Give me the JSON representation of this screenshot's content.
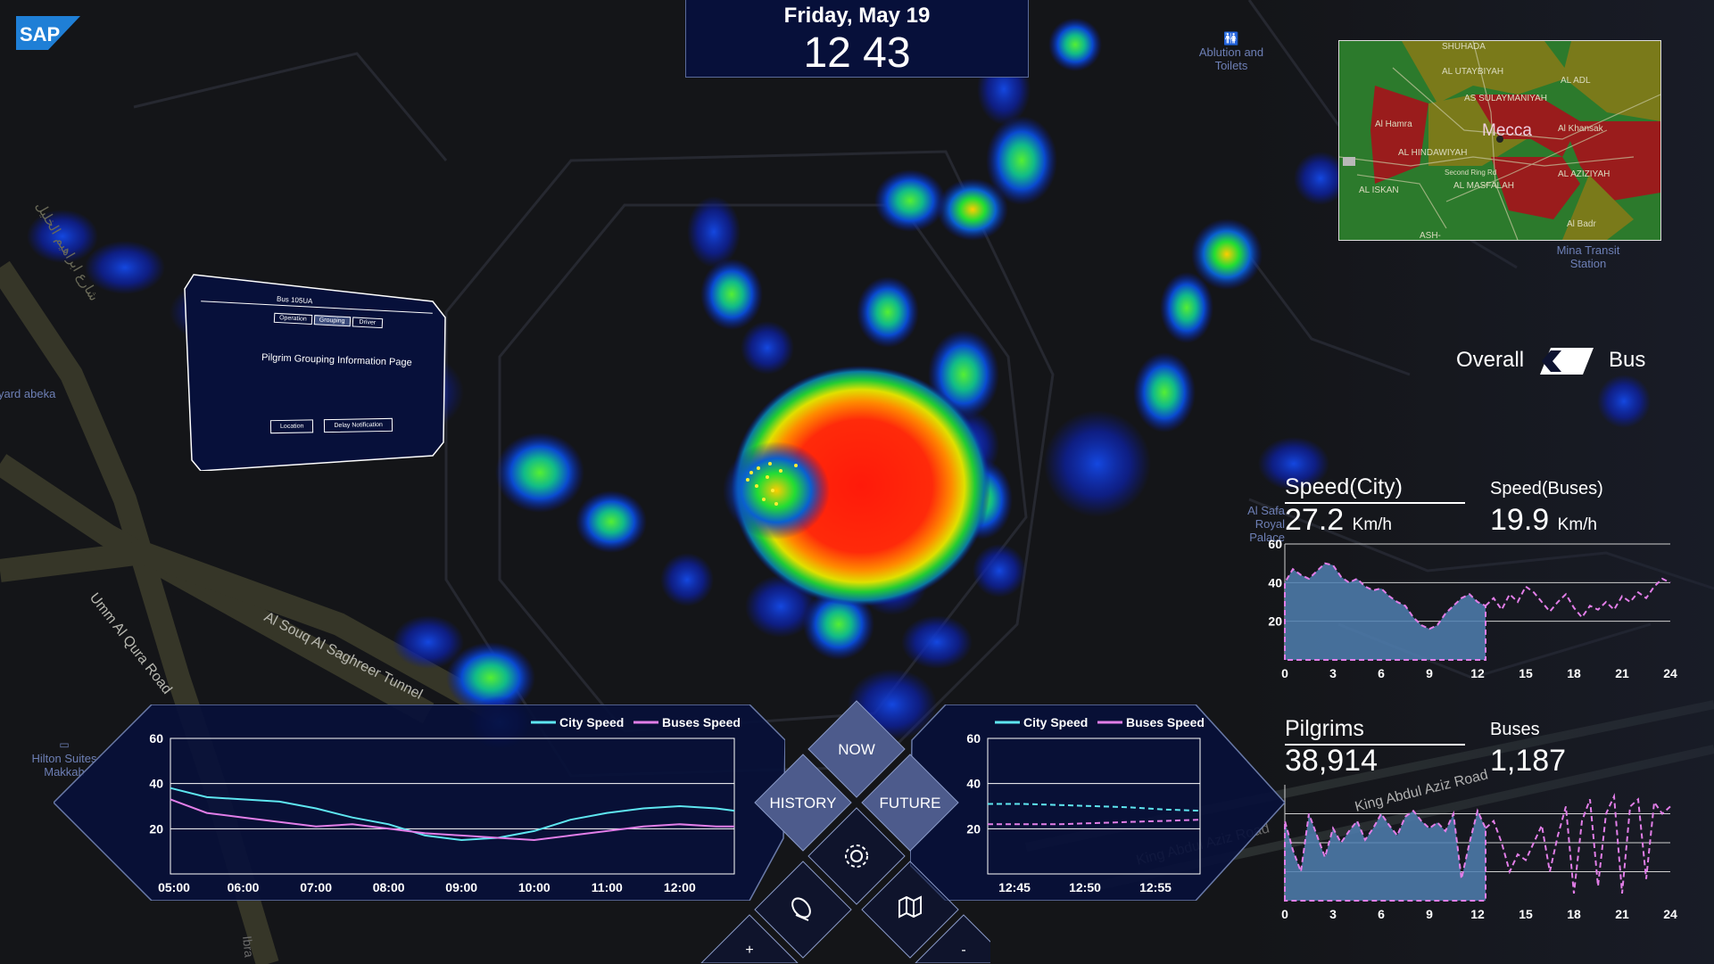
{
  "header": {
    "date": "Friday, May 19",
    "time": "12 43"
  },
  "logo": {
    "text": "SAP"
  },
  "map_labels": {
    "ablution": "Ablution and Toilets",
    "mina": "Mina Transit Station",
    "safa": "Al Safa Royal Palace",
    "hilton": "Hilton Suites Makkah",
    "umm_al_qura": "Umm Al Qura Road",
    "souq_tunnel": "Al Souq Al Saghreer Tunnel",
    "arabic_street": "شارع ابراهيم الخليل",
    "king_abdul": "King Abdul Aziz Road",
    "yard": "yard abeka",
    "ibra": "Ibra"
  },
  "minimap": {
    "city": "Mecca",
    "districts": [
      "SHUHADA",
      "AL UTAYBIYAH",
      "AS SULAYMANIYAH",
      "AL ADL",
      "Al Hamra",
      "AL HINDAWIYAH",
      "Al Khansak",
      "AL AZIZIYAH",
      "Second Ring Rd",
      "AL MASFALAH",
      "AL ISKAN",
      "Al Badr",
      "ASH-"
    ],
    "colors": {
      "congested": "#9a1c1c",
      "moderate": "#7a7a1a",
      "free": "#2c7a2c"
    }
  },
  "toggle": {
    "left": "Overall",
    "right": "Bus"
  },
  "bus_info": {
    "title": "Bus 105UA",
    "tabs": [
      "Operation",
      "Grouping",
      "Driver"
    ],
    "heading": "Pilgrim Grouping Information Page",
    "buttons": [
      "Location",
      "Delay Notification"
    ]
  },
  "stats": {
    "speed_city_label": "Speed(City)",
    "speed_city_value": "27.2",
    "speed_buses_label": "Speed(Buses)",
    "speed_buses_value": "19.9",
    "unit": "Km/h",
    "pilgrims_label": "Pilgrims",
    "pilgrims_value": "38,914",
    "buses_label": "Buses",
    "buses_value": "1,187"
  },
  "nav": {
    "now": "NOW",
    "history": "HISTORY",
    "future": "FUTURE",
    "zoom_in": "+",
    "zoom_out": "-"
  },
  "colors": {
    "city": "#5ee6f0",
    "bus": "#e27ee8",
    "panel": "#07103a",
    "area": "#4f7fb0"
  },
  "chart_data": [
    {
      "type": "line",
      "name": "history-chart",
      "legend": [
        "City Speed",
        "Buses Speed"
      ],
      "x_ticks": [
        "05:00",
        "06:00",
        "07:00",
        "08:00",
        "09:00",
        "10:00",
        "11:00",
        "12:00"
      ],
      "ylim": [
        0,
        60
      ],
      "y_ticks": [
        20,
        40,
        60
      ],
      "x": [
        5.0,
        5.5,
        6.0,
        6.5,
        7.0,
        7.5,
        8.0,
        8.5,
        9.0,
        9.5,
        10.0,
        10.5,
        11.0,
        11.5,
        12.0,
        12.5,
        12.75
      ],
      "series": [
        {
          "name": "City Speed",
          "values": [
            38,
            34,
            33,
            32,
            29,
            25,
            22,
            17,
            15,
            16,
            19,
            24,
            27,
            29,
            30,
            29,
            28
          ]
        },
        {
          "name": "Buses Speed",
          "values": [
            33,
            27,
            25,
            23,
            21,
            22,
            20,
            18,
            17,
            16,
            15,
            17,
            19,
            21,
            22,
            21,
            21
          ]
        }
      ]
    },
    {
      "type": "line",
      "name": "future-chart",
      "legend": [
        "City Speed",
        "Buses Speed"
      ],
      "x_ticks": [
        "12:45",
        "12:50",
        "12:55"
      ],
      "ylim": [
        0,
        60
      ],
      "y_ticks": [
        20,
        40,
        60
      ],
      "x": [
        43,
        46,
        49,
        52,
        55,
        58,
        61
      ],
      "series": [
        {
          "name": "City Speed",
          "values": [
            31,
            31,
            30.5,
            30,
            29.5,
            28.5,
            28
          ]
        },
        {
          "name": "Buses Speed",
          "values": [
            22,
            22,
            22,
            22.5,
            23,
            23.5,
            24
          ]
        }
      ]
    },
    {
      "type": "area",
      "name": "speed-chart",
      "x_ticks": [
        "0",
        "3",
        "6",
        "9",
        "12",
        "15",
        "18",
        "21",
        "24"
      ],
      "ylim": [
        0,
        60
      ],
      "y_ticks": [
        20,
        40,
        60
      ],
      "area_x": [
        0,
        0.5,
        1,
        1.5,
        2,
        2.5,
        3,
        3.5,
        4,
        4.5,
        5,
        5.5,
        6,
        6.5,
        7,
        7.5,
        8,
        8.5,
        9,
        9.5,
        10,
        10.5,
        11,
        11.5,
        12,
        12.5
      ],
      "area_values": [
        40,
        47,
        44,
        42,
        46,
        50,
        49,
        43,
        40,
        42,
        38,
        36,
        37,
        33,
        30,
        28,
        22,
        18,
        16,
        18,
        24,
        28,
        32,
        34,
        30,
        28
      ],
      "line_x": [
        12.5,
        13,
        13.5,
        14,
        14.5,
        15,
        15.5,
        16,
        16.5,
        17,
        17.5,
        18,
        18.5,
        19,
        19.5,
        20,
        20.5,
        21,
        21.5,
        22,
        22.5,
        23,
        23.5,
        24
      ],
      "line_values": [
        28,
        32,
        26,
        34,
        30,
        38,
        35,
        30,
        25,
        30,
        34,
        27,
        22,
        28,
        26,
        30,
        26,
        33,
        30,
        35,
        32,
        38,
        42,
        40
      ]
    },
    {
      "type": "area",
      "name": "pilgrims-chart",
      "x_ticks": [
        "0",
        "3",
        "6",
        "9",
        "12",
        "15",
        "18",
        "21",
        "24"
      ],
      "area_x": [
        0,
        0.5,
        1,
        1.5,
        2,
        2.5,
        3,
        3.5,
        4,
        4.5,
        5,
        5.5,
        6,
        6.5,
        7,
        7.5,
        8,
        8.5,
        9,
        9.5,
        10,
        10.5,
        11,
        11.5,
        12,
        12.5
      ],
      "area_values": [
        55,
        35,
        20,
        60,
        45,
        30,
        50,
        40,
        48,
        55,
        42,
        50,
        60,
        52,
        45,
        58,
        62,
        55,
        50,
        54,
        48,
        60,
        15,
        40,
        62,
        50
      ],
      "line_x": [
        12.5,
        13,
        13.5,
        14,
        14.5,
        15,
        15.5,
        16,
        16.5,
        17,
        17.5,
        18,
        18.5,
        19,
        19.5,
        20,
        20.5,
        21,
        21.5,
        22,
        22.5,
        23,
        23.5,
        24
      ],
      "line_values": [
        50,
        55,
        40,
        20,
        32,
        28,
        40,
        52,
        20,
        45,
        65,
        5,
        55,
        70,
        10,
        60,
        72,
        5,
        65,
        70,
        15,
        68,
        60,
        65
      ]
    }
  ]
}
